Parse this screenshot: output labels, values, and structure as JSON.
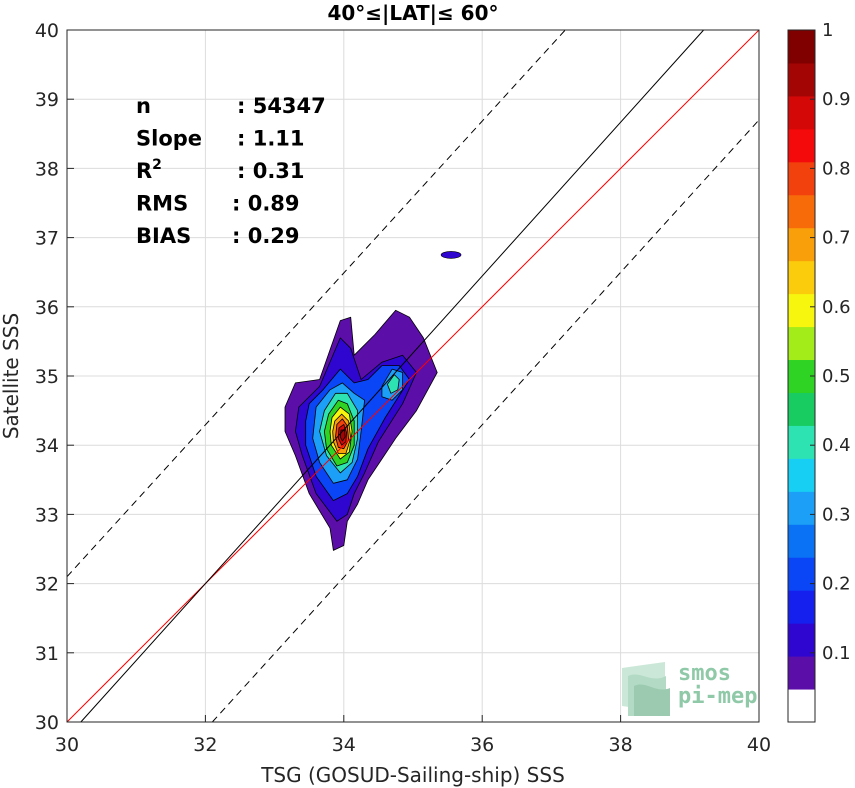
{
  "chart_data": {
    "type": "heatmap",
    "title": "40°≤|LAT|≤ 60°",
    "xlabel": "TSG (GOSUD-Sailing-ship) SSS",
    "ylabel": "Satellite SSS",
    "xlim": [
      30,
      40
    ],
    "ylim": [
      30,
      40
    ],
    "xticks": [
      "30",
      "32",
      "34",
      "36",
      "38",
      "40"
    ],
    "yticks": [
      "30",
      "31",
      "32",
      "33",
      "34",
      "35",
      "36",
      "37",
      "38",
      "39",
      "40"
    ],
    "grid": true,
    "stats": [
      {
        "label": "n",
        "value": ": 54347"
      },
      {
        "label": "Slope",
        "value": ": 1.11"
      },
      {
        "label": "R",
        "sup": "2",
        "value": ": 0.31"
      },
      {
        "label": "RMS",
        "value": ": 0.89"
      },
      {
        "label": "BIAS",
        "value": ": 0.29"
      }
    ],
    "lines": [
      {
        "kind": "identity",
        "color": "#ff0000",
        "dash": false,
        "from": [
          30,
          30
        ],
        "to": [
          40,
          40
        ]
      },
      {
        "kind": "fit",
        "color": "#000000",
        "dash": false,
        "from": [
          30.2,
          30
        ],
        "to": [
          39.2,
          40
        ]
      },
      {
        "kind": "upper-bound",
        "color": "#000000",
        "dash": true,
        "from": [
          30,
          32.1
        ],
        "to": [
          37.2,
          40
        ]
      },
      {
        "kind": "lower-bound",
        "color": "#000000",
        "dash": true,
        "from": [
          32.1,
          30
        ],
        "to": [
          40,
          38.7
        ]
      }
    ],
    "density_peak": {
      "x": 34.0,
      "y": 34.2,
      "value": 1.0
    },
    "secondary_peak": {
      "x": 34.7,
      "y": 34.9,
      "value": 0.45
    },
    "outlier_blob": {
      "x": 35.55,
      "y": 36.75
    },
    "contours": [
      {
        "level": 0.05,
        "points": [
          [
            33.15,
            34.55
          ],
          [
            33.3,
            34.9
          ],
          [
            33.65,
            34.95
          ],
          [
            33.95,
            35.8
          ],
          [
            34.1,
            35.85
          ],
          [
            34.15,
            35.3
          ],
          [
            34.45,
            35.6
          ],
          [
            34.75,
            35.95
          ],
          [
            34.95,
            35.85
          ],
          [
            35.15,
            35.55
          ],
          [
            35.35,
            35.05
          ],
          [
            35.05,
            34.5
          ],
          [
            34.75,
            34.1
          ],
          [
            34.55,
            33.8
          ],
          [
            34.35,
            33.5
          ],
          [
            34.2,
            33.15
          ],
          [
            34.05,
            32.9
          ],
          [
            34.0,
            32.55
          ],
          [
            33.85,
            32.48
          ],
          [
            33.8,
            32.8
          ],
          [
            33.5,
            33.3
          ],
          [
            33.3,
            33.85
          ],
          [
            33.15,
            34.2
          ]
        ]
      },
      {
        "level": 0.1,
        "points": [
          [
            33.35,
            34.55
          ],
          [
            33.65,
            34.85
          ],
          [
            33.95,
            35.55
          ],
          [
            34.1,
            35.4
          ],
          [
            34.25,
            34.95
          ],
          [
            34.55,
            35.2
          ],
          [
            34.85,
            35.3
          ],
          [
            35.05,
            35.05
          ],
          [
            34.85,
            34.6
          ],
          [
            34.5,
            34.05
          ],
          [
            34.3,
            33.6
          ],
          [
            34.15,
            33.3
          ],
          [
            34.05,
            33.0
          ],
          [
            33.9,
            32.9
          ],
          [
            33.6,
            33.3
          ],
          [
            33.4,
            33.85
          ],
          [
            33.3,
            34.2
          ]
        ]
      },
      {
        "level": 0.2,
        "points": [
          [
            33.5,
            34.6
          ],
          [
            33.7,
            34.8
          ],
          [
            33.95,
            35.1
          ],
          [
            34.15,
            34.9
          ],
          [
            34.35,
            34.95
          ],
          [
            34.55,
            35.15
          ],
          [
            34.8,
            35.15
          ],
          [
            34.95,
            34.95
          ],
          [
            34.6,
            34.4
          ],
          [
            34.35,
            33.95
          ],
          [
            34.2,
            33.55
          ],
          [
            34.05,
            33.3
          ],
          [
            33.85,
            33.2
          ],
          [
            33.6,
            33.55
          ],
          [
            33.45,
            34.0
          ],
          [
            33.45,
            34.35
          ]
        ]
      },
      {
        "level": 0.3,
        "points": [
          [
            33.6,
            34.55
          ],
          [
            33.8,
            34.8
          ],
          [
            33.98,
            34.9
          ],
          [
            34.15,
            34.75
          ],
          [
            34.3,
            34.65
          ],
          [
            34.25,
            34.2
          ],
          [
            34.2,
            33.8
          ],
          [
            34.05,
            33.5
          ],
          [
            33.85,
            33.45
          ],
          [
            33.65,
            33.75
          ],
          [
            33.55,
            34.1
          ]
        ]
      },
      {
        "level": 0.4,
        "points": [
          [
            33.72,
            34.5
          ],
          [
            33.88,
            34.75
          ],
          [
            34.05,
            34.75
          ],
          [
            34.2,
            34.5
          ],
          [
            34.2,
            34.1
          ],
          [
            34.12,
            33.75
          ],
          [
            33.95,
            33.6
          ],
          [
            33.75,
            33.85
          ],
          [
            33.65,
            34.2
          ]
        ]
      },
      {
        "level": 0.5,
        "points": [
          [
            33.78,
            34.45
          ],
          [
            33.92,
            34.65
          ],
          [
            34.05,
            34.6
          ],
          [
            34.15,
            34.35
          ],
          [
            34.15,
            34.0
          ],
          [
            34.05,
            33.75
          ],
          [
            33.9,
            33.7
          ],
          [
            33.75,
            33.95
          ],
          [
            33.72,
            34.2
          ]
        ]
      },
      {
        "level": 0.6,
        "points": [
          [
            33.83,
            34.4
          ],
          [
            33.95,
            34.55
          ],
          [
            34.08,
            34.45
          ],
          [
            34.12,
            34.2
          ],
          [
            34.08,
            33.9
          ],
          [
            33.95,
            33.8
          ],
          [
            33.82,
            34.0
          ],
          [
            33.8,
            34.2
          ]
        ]
      },
      {
        "level": 0.7,
        "points": [
          [
            33.87,
            34.35
          ],
          [
            33.97,
            34.45
          ],
          [
            34.07,
            34.35
          ],
          [
            34.1,
            34.1
          ],
          [
            34.03,
            33.88
          ],
          [
            33.92,
            33.88
          ],
          [
            33.85,
            34.05
          ],
          [
            33.84,
            34.2
          ]
        ]
      },
      {
        "level": 0.8,
        "points": [
          [
            33.9,
            34.3
          ],
          [
            33.98,
            34.38
          ],
          [
            34.05,
            34.28
          ],
          [
            34.07,
            34.08
          ],
          [
            34.0,
            33.95
          ],
          [
            33.92,
            33.97
          ],
          [
            33.88,
            34.12
          ]
        ]
      },
      {
        "level": 0.9,
        "points": [
          [
            33.93,
            34.25
          ],
          [
            34.0,
            34.3
          ],
          [
            34.04,
            34.18
          ],
          [
            34.03,
            34.05
          ],
          [
            33.97,
            34.0
          ],
          [
            33.92,
            34.1
          ]
        ]
      },
      {
        "level": 0.95,
        "points": [
          [
            33.96,
            34.22
          ],
          [
            34.01,
            34.22
          ],
          [
            34.02,
            34.12
          ],
          [
            33.98,
            34.06
          ],
          [
            33.95,
            34.12
          ]
        ]
      }
    ],
    "secondary_contours": [
      {
        "level": 0.3,
        "points": [
          [
            34.55,
            34.85
          ],
          [
            34.7,
            35.1
          ],
          [
            34.85,
            35.05
          ],
          [
            34.85,
            34.8
          ],
          [
            34.7,
            34.65
          ],
          [
            34.55,
            34.7
          ]
        ]
      },
      {
        "level": 0.4,
        "points": [
          [
            34.63,
            34.88
          ],
          [
            34.73,
            35.02
          ],
          [
            34.8,
            34.95
          ],
          [
            34.78,
            34.8
          ],
          [
            34.68,
            34.75
          ]
        ]
      }
    ],
    "colorbar": {
      "ticks": [
        "0.1",
        "0.2",
        "0.3",
        "0.4",
        "0.5",
        "0.6",
        "0.7",
        "0.8",
        "0.9",
        "1"
      ],
      "range": [
        0,
        1
      ],
      "colors": [
        "#ffffff",
        "#5b0fa8",
        "#2f06d0",
        "#1620ee",
        "#0a46f5",
        "#0a72f5",
        "#1ca0f7",
        "#16cff2",
        "#2ee3b2",
        "#18cc61",
        "#2fd324",
        "#a4ec19",
        "#f6f60f",
        "#fbcc0c",
        "#f99f0a",
        "#f86b09",
        "#f2410c",
        "#f40a0a",
        "#d50808",
        "#a30505",
        "#800000"
      ]
    }
  },
  "logo": {
    "line1": "smos",
    "line2": "pi-mep"
  }
}
